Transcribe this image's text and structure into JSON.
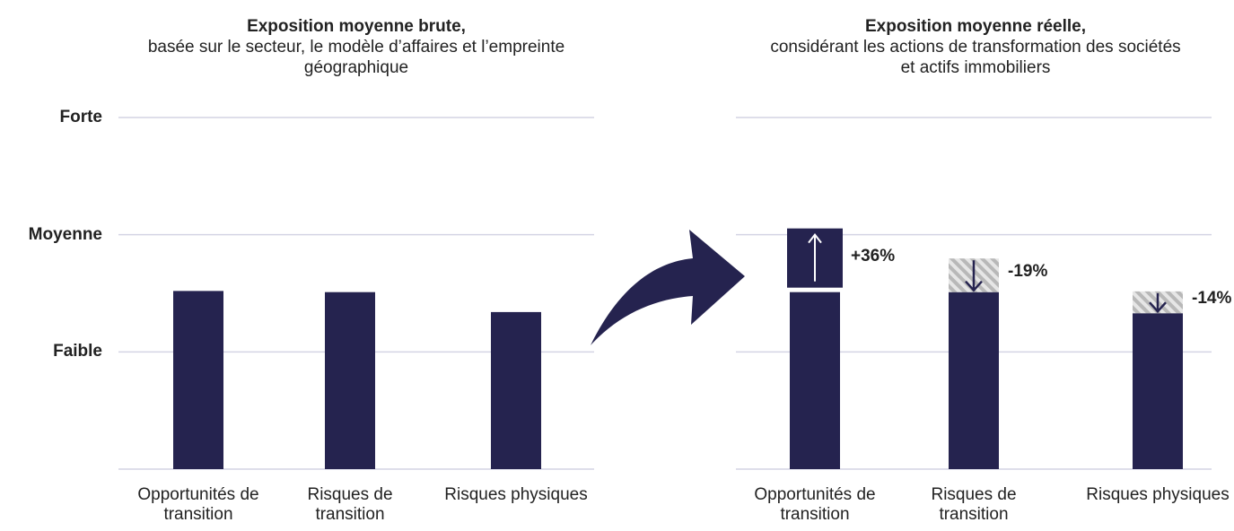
{
  "chart_data": [
    {
      "type": "bar",
      "title": "Exposition moyenne brute,",
      "subtitle": "basée sur le secteur, le modèle d’affaires et l’empreinte géographique",
      "categories": [
        "Opportunités de transition",
        "Risques de transition",
        "Risques physiques"
      ],
      "values": [
        1.52,
        1.51,
        1.34
      ],
      "color": "#25234f",
      "ylim": [
        0,
        3
      ],
      "yticks": [
        {
          "value": 1,
          "label": "Faible"
        },
        {
          "value": 2,
          "label": "Moyenne"
        },
        {
          "value": 3,
          "label": "Forte"
        }
      ],
      "grid": true
    },
    {
      "type": "bar",
      "title": "Exposition moyenne réelle,",
      "subtitle": "considérant les actions de transformation des sociétés et actifs immobiliers",
      "categories": [
        "Opportunités de transition",
        "Risques de transition",
        "Risques physiques"
      ],
      "values": [
        1.51,
        1.51,
        1.33
      ],
      "changes": [
        36,
        -19,
        -14
      ],
      "change_labels": [
        "+36%",
        "-19%",
        "-14%"
      ],
      "color": "#25234f",
      "ylim": [
        0,
        3
      ],
      "yticks": [
        1,
        2,
        3
      ],
      "grid": true
    }
  ]
}
